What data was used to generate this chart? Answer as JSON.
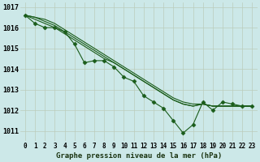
{
  "title": "Graphe pression niveau de la mer (hPa)",
  "background_color": "#cce8e8",
  "grid_color": "#bbccbb",
  "line_color": "#1a5c1a",
  "x_ticks": [
    0,
    1,
    2,
    3,
    4,
    5,
    6,
    7,
    8,
    9,
    10,
    11,
    12,
    13,
    14,
    15,
    16,
    17,
    18,
    19,
    20,
    21,
    22,
    23
  ],
  "ylim": [
    1010.5,
    1017.2
  ],
  "yticks": [
    1011,
    1012,
    1013,
    1014,
    1015,
    1016,
    1017
  ],
  "series": [
    [
      1016.6,
      1016.2,
      1016.0,
      1016.0,
      1015.8,
      1015.2,
      1014.3,
      1014.4,
      1014.4,
      1014.1,
      1013.6,
      1013.4,
      1012.7,
      1012.4,
      1012.1,
      1011.5,
      1010.9,
      1011.3,
      1012.4,
      1012.0,
      1012.4,
      1012.3,
      1012.2,
      1012.2
    ],
    [
      1016.6,
      1016.4,
      1016.2,
      1016.0,
      1015.7,
      1015.4,
      1015.1,
      1014.8,
      1014.5,
      1014.3,
      1014.0,
      1013.7,
      1013.4,
      1013.1,
      1012.8,
      1012.5,
      1012.3,
      1012.2,
      1012.3,
      1012.2,
      1012.2,
      1012.2,
      1012.2,
      1012.2
    ],
    [
      1016.6,
      1016.5,
      1016.3,
      1016.1,
      1015.8,
      1015.5,
      1015.2,
      1014.9,
      1014.6,
      1014.3,
      1014.0,
      1013.7,
      1013.4,
      1013.1,
      1012.8,
      1012.5,
      1012.3,
      1012.2,
      1012.3,
      1012.2,
      1012.2,
      1012.2,
      1012.2,
      1012.2
    ],
    [
      1016.6,
      1016.5,
      1016.4,
      1016.2,
      1015.9,
      1015.6,
      1015.3,
      1015.0,
      1014.7,
      1014.4,
      1014.1,
      1013.8,
      1013.5,
      1013.2,
      1012.9,
      1012.6,
      1012.4,
      1012.3,
      1012.3,
      1012.2,
      1012.2,
      1012.2,
      1012.2,
      1012.2
    ]
  ],
  "marker": "D",
  "marker_size": 2.5,
  "linewidth": 0.8,
  "tick_fontsize": 5.5,
  "xlabel_fontsize": 6.5
}
